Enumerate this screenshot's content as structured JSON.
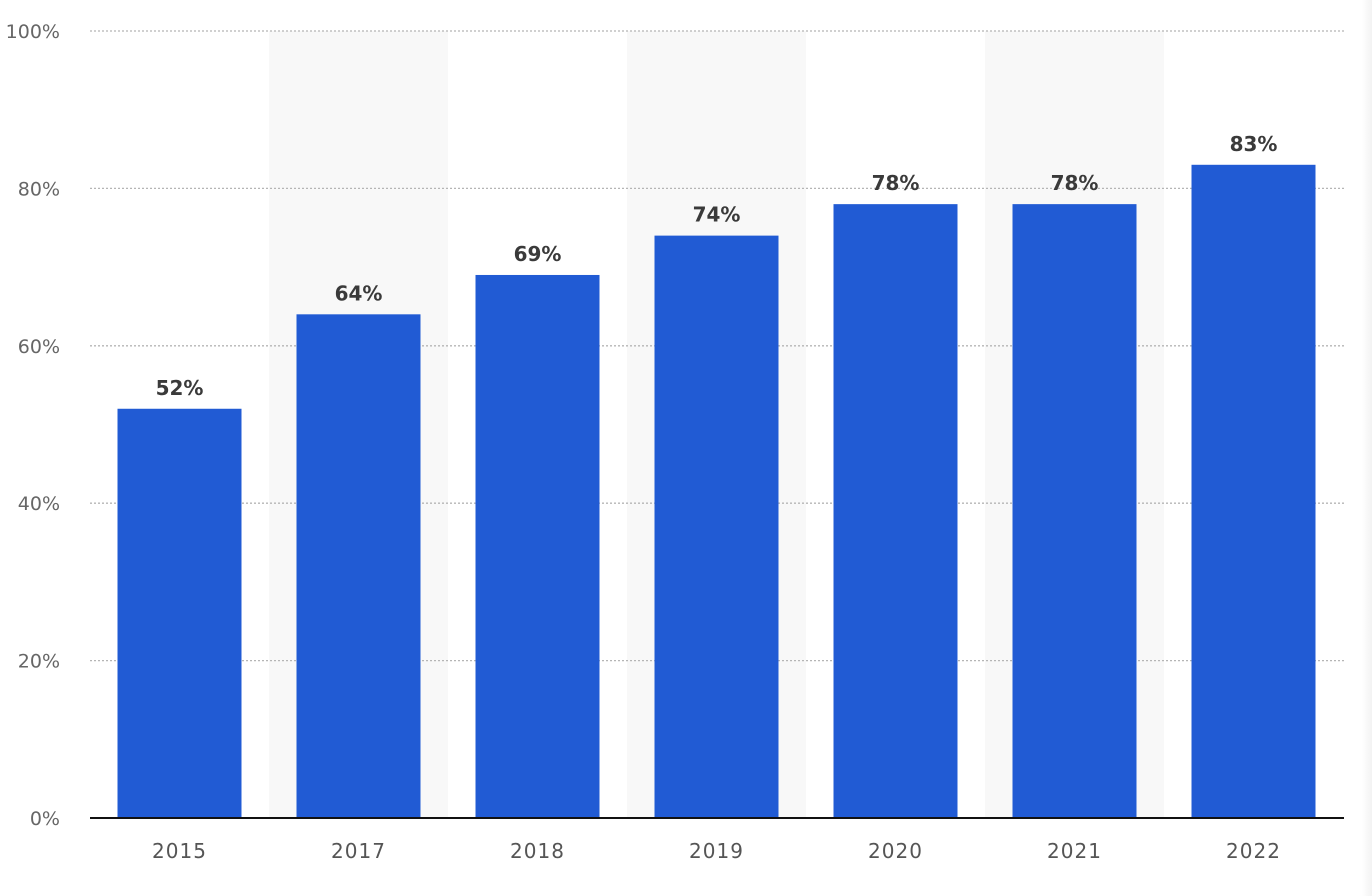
{
  "chart_data": {
    "type": "bar",
    "title": "",
    "xlabel": "",
    "ylabel": "",
    "categories": [
      "2015",
      "2017",
      "2018",
      "2019",
      "2020",
      "2021",
      "2022"
    ],
    "values": [
      52,
      64,
      69,
      74,
      78,
      78,
      83
    ],
    "data_labels": [
      "52%",
      "64%",
      "69%",
      "74%",
      "78%",
      "78%",
      "83%"
    ],
    "ylim": [
      0,
      100
    ],
    "yticks": [
      0,
      20,
      40,
      60,
      80,
      100
    ],
    "ytick_labels": [
      "0%",
      "20%",
      "40%",
      "60%",
      "80%",
      "100%"
    ],
    "grid": true,
    "legend": "none",
    "colors": {
      "bar": "#215bd4",
      "alternate_band": "#f8f8f8",
      "gridline": "#b5b5b5",
      "axis": "#111111"
    }
  }
}
